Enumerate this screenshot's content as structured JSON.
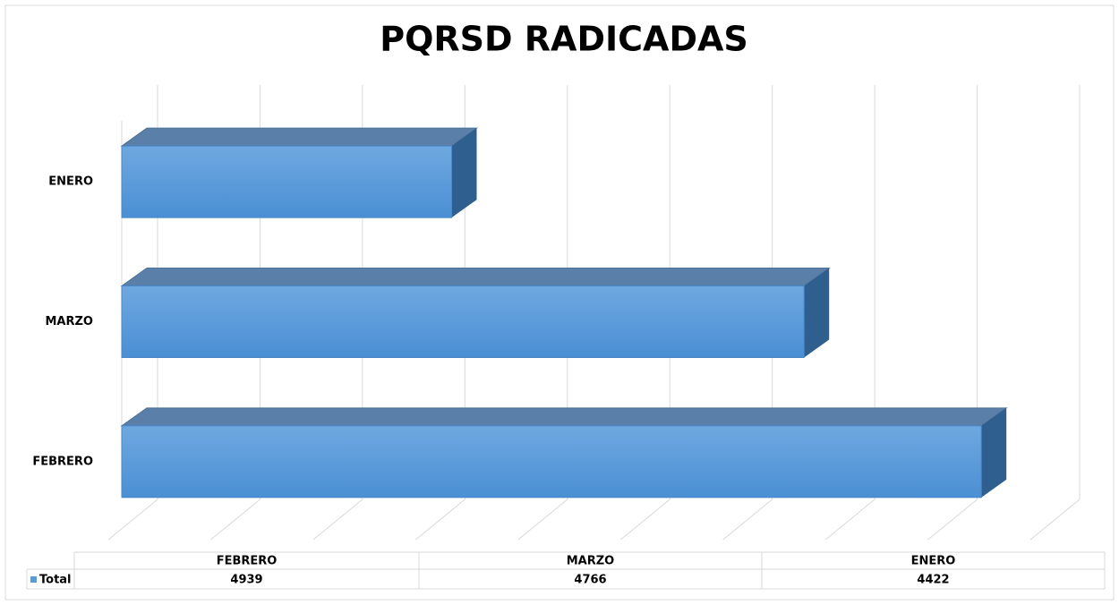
{
  "chart_data": {
    "type": "bar3d_horizontal",
    "title": "PQRSD RADICADAS",
    "categories": [
      "FEBRERO",
      "MARZO",
      "ENERO"
    ],
    "series": [
      {
        "name": "Total",
        "color": "#5b9bd5",
        "values": [
          4939,
          4766,
          4422
        ]
      }
    ],
    "xlim": [
      4100,
      5000
    ],
    "xticks": [
      4100,
      4200,
      4300,
      4400,
      4500,
      4600,
      4700,
      4800,
      4900,
      5000
    ],
    "grid": true,
    "data_table": true
  }
}
